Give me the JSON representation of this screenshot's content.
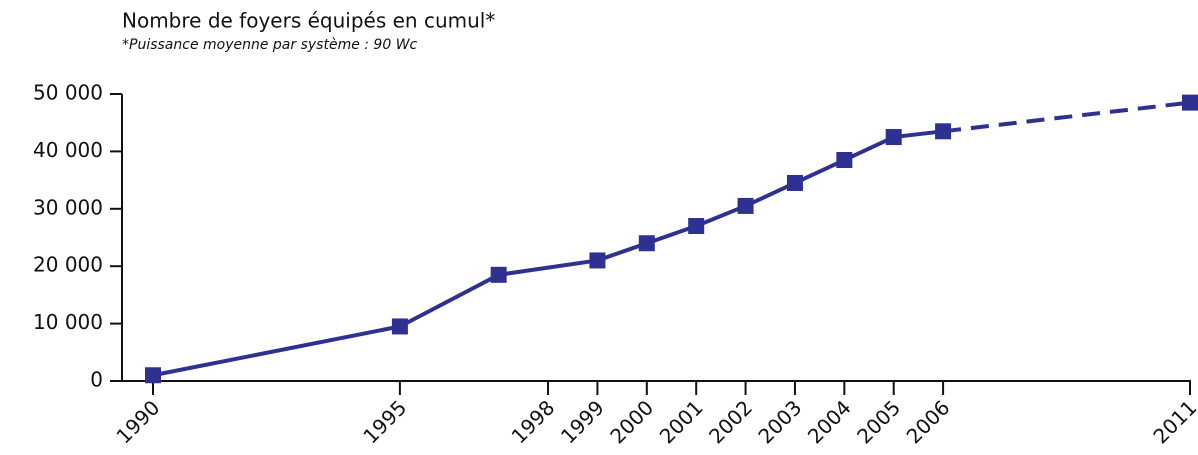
{
  "chart_data": {
    "type": "line",
    "title": "Nombre de foyers équipés en cumul*",
    "subtitle": "*Puissance moyenne par système : 90 Wc",
    "x": [
      1990,
      1995,
      1997,
      1999,
      2000,
      2001,
      2002,
      2003,
      2004,
      2005,
      2006,
      2011
    ],
    "series": [
      {
        "color": "#2e3192",
        "dashed_from": 2006,
        "values": [
          1000,
          9500,
          18500,
          21000,
          24000,
          27000,
          30500,
          34500,
          38500,
          42500,
          43500,
          48500
        ]
      }
    ],
    "xlim": [
      1990,
      2011
    ],
    "xticks": [
      1990,
      1995,
      1998,
      1999,
      2000,
      2001,
      2002,
      2003,
      2004,
      2005,
      2006,
      2011
    ],
    "ylim": [
      0,
      50000
    ],
    "yticks": [
      0,
      {
        "value": 10000,
        "label": "10 000"
      },
      {
        "value": 20000,
        "label": "20 000"
      },
      {
        "value": 30000,
        "label": "30 000"
      },
      {
        "value": 40000,
        "label": "40 000"
      },
      {
        "value": 50000,
        "label": "50 000"
      }
    ],
    "grid": false
  }
}
